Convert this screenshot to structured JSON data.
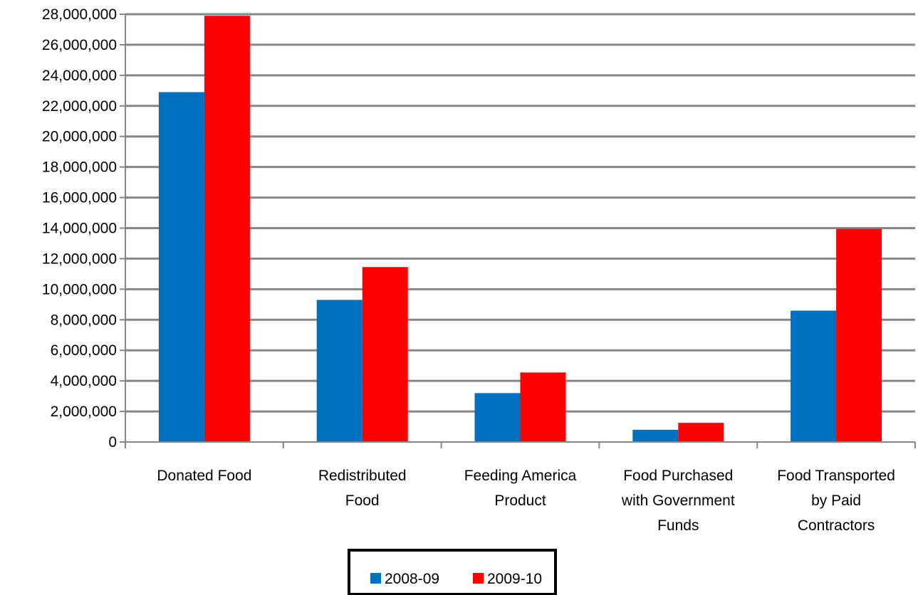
{
  "chart_data": {
    "type": "bar",
    "title": "",
    "xlabel": "",
    "ylabel": "",
    "categories": [
      [
        "Donated Food"
      ],
      [
        "Redistributed",
        "Food"
      ],
      [
        "Feeding America",
        "Product"
      ],
      [
        "Food Purchased",
        "with Government",
        "Funds"
      ],
      [
        "Food Transported",
        "by Paid",
        "Contractors"
      ]
    ],
    "series": [
      {
        "name": "2008-09",
        "color": "#0070C0",
        "values": [
          22900000,
          9300000,
          3200000,
          800000,
          8600000
        ]
      },
      {
        "name": "2009-10",
        "color": "#FF0000",
        "values": [
          27900000,
          11450000,
          4550000,
          1250000,
          13950000
        ]
      }
    ],
    "ylim": [
      0,
      28000000
    ],
    "yticks": [
      "0",
      "2,000,000",
      "4,000,000",
      "6,000,000",
      "8,000,000",
      "10,000,000",
      "12,000,000",
      "14,000,000",
      "16,000,000",
      "18,000,000",
      "20,000,000",
      "22,000,000",
      "24,000,000",
      "26,000,000",
      "28,000,000"
    ],
    "grid": true,
    "legend": "bottom"
  }
}
